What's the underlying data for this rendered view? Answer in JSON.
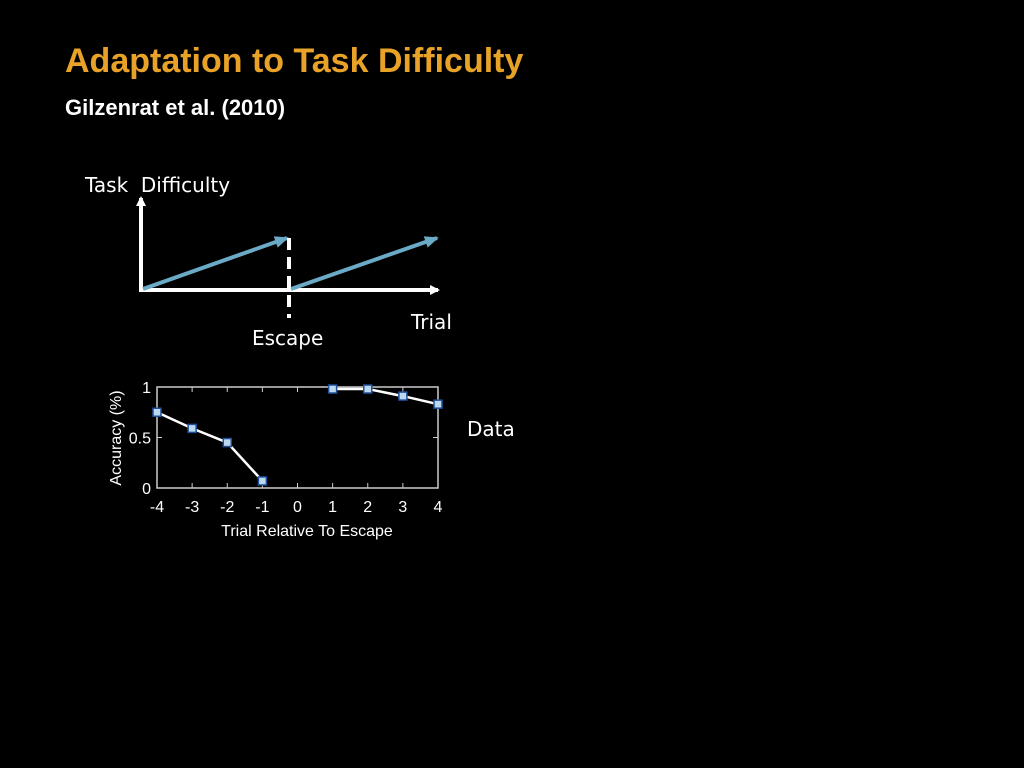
{
  "title": "Adaptation to Task Difficulty",
  "subtitle": "Gilzenrat et al. (2010)",
  "diagram": {
    "y_label": "Task  Difficulty",
    "x_label": "Trial",
    "marker_label": "Escape"
  },
  "data_label": "Data",
  "chart_data": {
    "type": "line",
    "x_label": "Trial Relative To Escape",
    "y_label": "Accuracy (%)",
    "x": [
      -4,
      -3,
      -2,
      -1,
      0,
      1,
      2,
      3,
      4
    ],
    "series": [
      {
        "color": "#ffffff",
        "marker_color": "#bcd8ee",
        "values": [
          0.75,
          0.59,
          0.45,
          0.07,
          null,
          0.98,
          0.98,
          0.91,
          0.83
        ]
      }
    ],
    "xlim": [
      -4,
      4
    ],
    "xticks": [
      -4,
      -3,
      -2,
      -1,
      0,
      1,
      2,
      3,
      4
    ],
    "ylim": [
      0,
      1
    ],
    "yticks": [
      0,
      0.5,
      1
    ]
  }
}
